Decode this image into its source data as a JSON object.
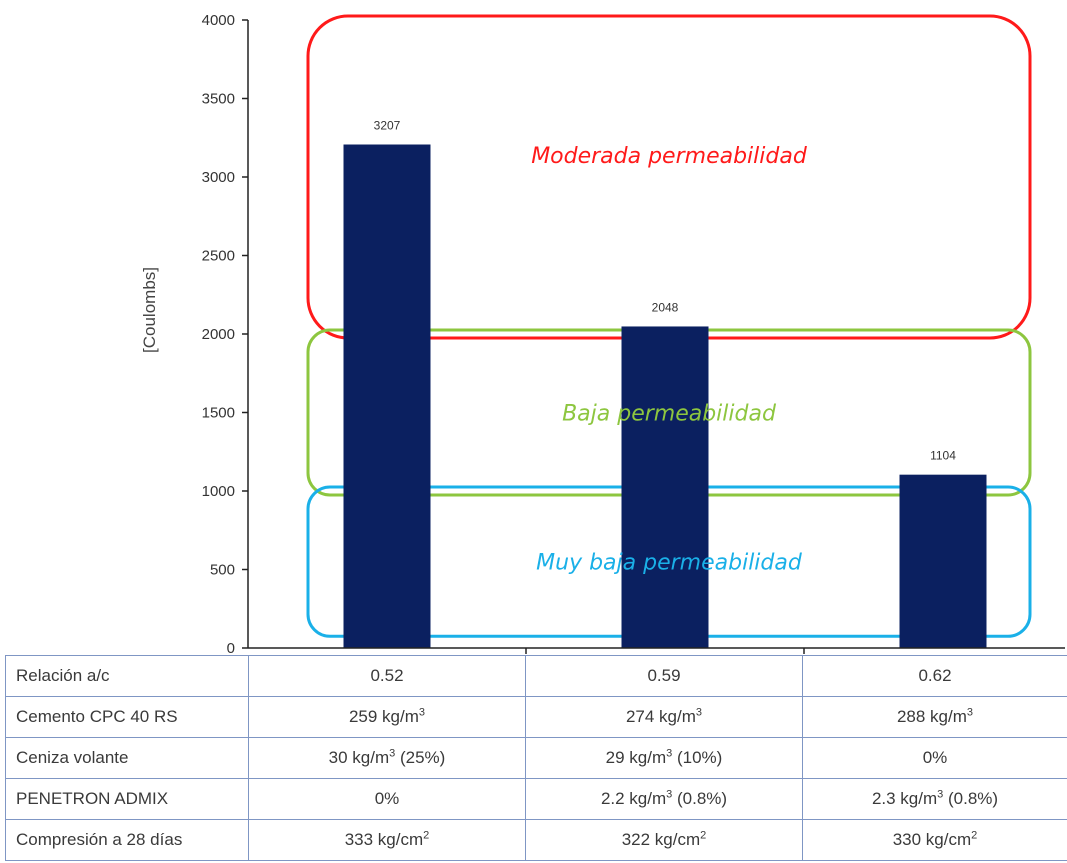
{
  "chart_data": {
    "type": "bar",
    "title": "",
    "xlabel": "",
    "ylabel": "[Coulombs]",
    "ylim": [
      0,
      4000
    ],
    "yticks": [
      0,
      500,
      1000,
      1500,
      2000,
      2500,
      3000,
      3500,
      4000
    ],
    "categories": [
      "0.52",
      "0.59",
      "0.62"
    ],
    "values": [
      3207,
      2048,
      1104
    ],
    "bar_color": "#0b2060",
    "zones": [
      {
        "label": "Moderada permeabilidad",
        "range": [
          2000,
          4000
        ],
        "color": "#ff1a1a"
      },
      {
        "label": "Baja permeabilidad",
        "range": [
          1000,
          2000
        ],
        "color": "#8dc63f"
      },
      {
        "label": "Muy baja permeabilidad",
        "range": [
          100,
          1000
        ],
        "color": "#1ab0e8"
      }
    ]
  },
  "table": {
    "rows": [
      {
        "label": "Relación a/c",
        "values": [
          "0.52",
          "0.59",
          "0.62"
        ]
      },
      {
        "label": "Cemento CPC 40 RS",
        "values": [
          "259 kg/m³",
          "274 kg/m³",
          "288 kg/m³"
        ]
      },
      {
        "label": "Ceniza volante",
        "values": [
          "30 kg/m³ (25%)",
          "29 kg/m³ (10%)",
          "0%"
        ]
      },
      {
        "label": "PENETRON ADMIX",
        "values": [
          "0%",
          "2.2 kg/m³ (0.8%)",
          "2.3 kg/m³ (0.8%)"
        ]
      },
      {
        "label": "Compresión a 28 días",
        "values": [
          "333 kg/cm²",
          "322 kg/cm²",
          "330 kg/cm²"
        ]
      }
    ]
  }
}
